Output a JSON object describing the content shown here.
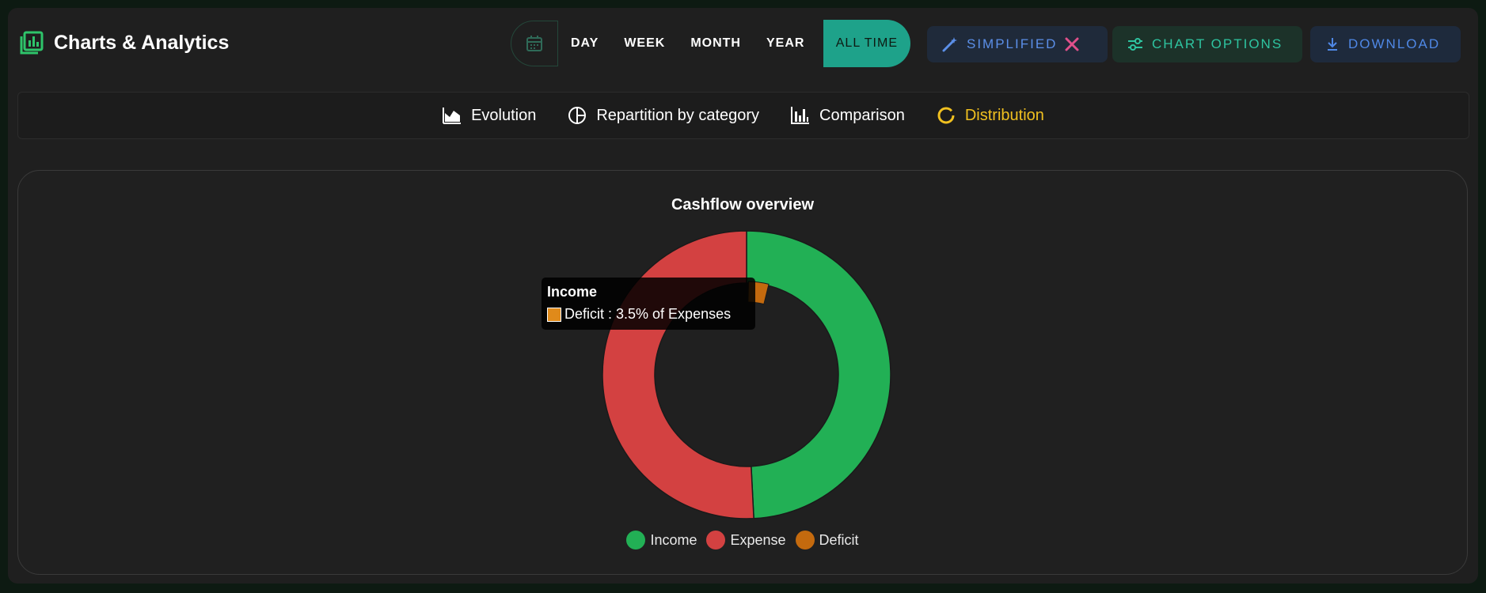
{
  "header": {
    "title": "Charts & Analytics"
  },
  "period": {
    "calendar_icon": "calendar-icon",
    "options": [
      "DAY",
      "WEEK",
      "MONTH",
      "YEAR"
    ],
    "active": "ALL TIME"
  },
  "actions": {
    "simplified": "SIMPLIFIED",
    "chart_options": "CHART OPTIONS",
    "download": "DOWNLOAD"
  },
  "tabs": [
    {
      "label": "Evolution",
      "icon": "area-chart-icon"
    },
    {
      "label": "Repartition by category",
      "icon": "pie-chart-icon"
    },
    {
      "label": "Comparison",
      "icon": "bar-chart-icon"
    },
    {
      "label": "Distribution",
      "icon": "donut-chart-icon",
      "active": true
    }
  ],
  "colors": {
    "accent": "#1ea28a",
    "income": "#22b055",
    "expense": "#d34141",
    "deficit": "#c46a0e",
    "active_tab": "#f0c020"
  },
  "tooltip": {
    "title": "Income",
    "text": "Deficit : 3.5% of Expenses"
  },
  "chart_data": {
    "type": "pie",
    "title": "Cashflow overview",
    "series": [
      {
        "name": "Income",
        "values": [
          49.2
        ]
      },
      {
        "name": "Expense",
        "values": [
          50.8
        ]
      },
      {
        "name": "Deficit",
        "values": [
          3.5
        ]
      }
    ],
    "legend": [
      "Income",
      "Expense",
      "Deficit"
    ],
    "legend_position": "bottom"
  }
}
